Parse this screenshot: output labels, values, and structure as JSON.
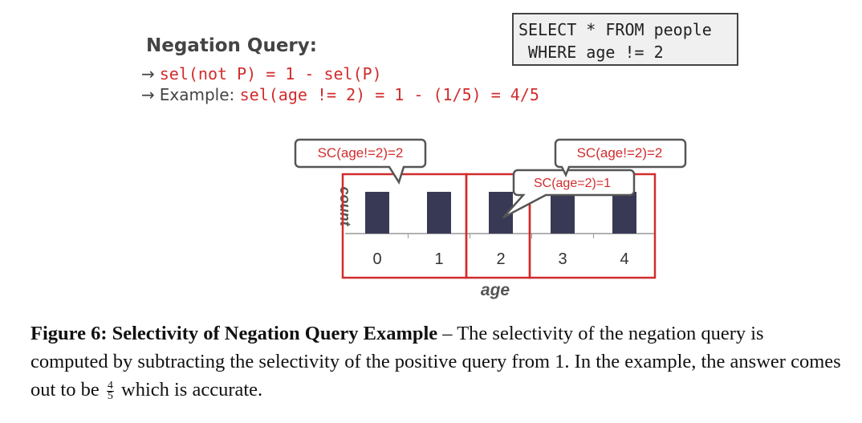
{
  "heading": "Negation Query:",
  "bullet1": "sel(not P) = 1 - sel(P)",
  "bullet2_prefix": "Example:",
  "bullet2_code": "sel(age != 2) = 1 - (1/5) = 4/5",
  "arrow_glyph": "→",
  "sql": {
    "line1": "SELECT * FROM people",
    "line2": " WHERE age != 2"
  },
  "callouts": {
    "left": "SC(age!=2)=2",
    "right": "SC(age!=2)=2",
    "middle": "SC(age=2)=1"
  },
  "chart_data": {
    "type": "bar",
    "categories": [
      "0",
      "1",
      "2",
      "3",
      "4"
    ],
    "values": [
      1,
      1,
      1,
      1,
      1
    ],
    "xlabel": "age",
    "ylabel": "count",
    "bar_color": "#383a55",
    "highlight_color": "#d12c2c"
  },
  "caption": {
    "label": "Figure 6: Selectivity of Negation Query Example",
    "dash": " – ",
    "text1": "The selectivity of the negation query is computed by subtracting the selectivity of the positive query from 1. In the example, the answer comes out to be",
    "frac_num": "4",
    "frac_den": "5",
    "text2": "which is accurate."
  }
}
